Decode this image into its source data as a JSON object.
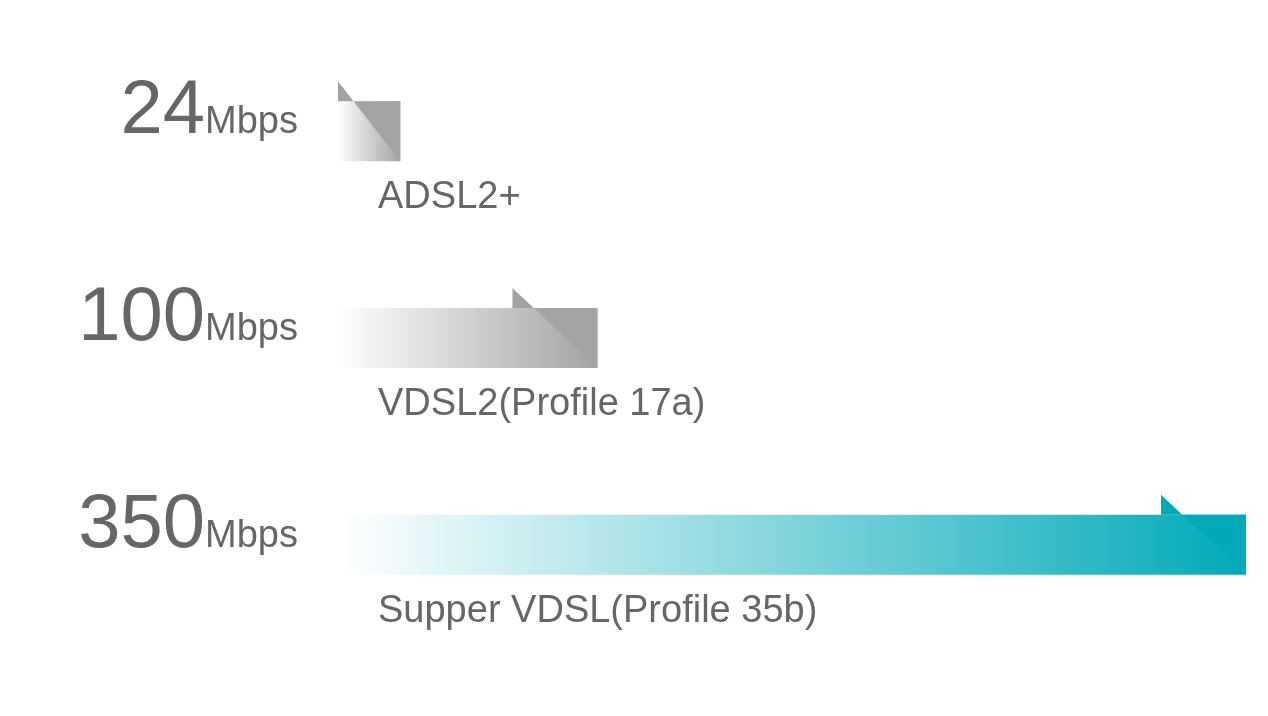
{
  "chart_data": {
    "type": "bar",
    "orientation": "horizontal",
    "categories": [
      "ADSL2+",
      "VDSL2(Profile 17a)",
      "Supper VDSL(Profile 35b)"
    ],
    "values": [
      24,
      100,
      350
    ],
    "colors": [
      "#a3a3a3",
      "#a3a3a3",
      "#00aab8"
    ],
    "value_labels": [
      "24Mbps",
      "100Mbps",
      "350Mbps"
    ]
  }
}
